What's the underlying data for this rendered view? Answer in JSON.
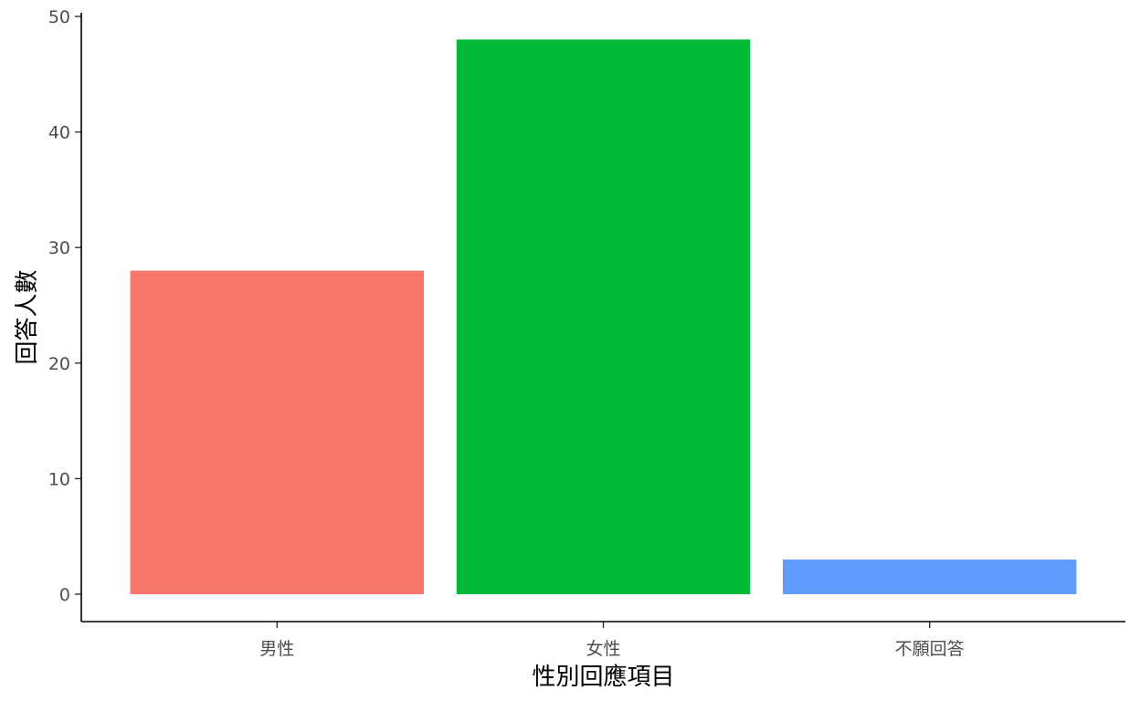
{
  "chart_data": {
    "type": "bar",
    "categories": [
      "男性",
      "女性",
      "不願回答"
    ],
    "values": [
      28,
      48,
      3
    ],
    "colors": [
      "#F8766D",
      "#00BA38",
      "#619CFF"
    ],
    "xlabel": "性別回應項目",
    "ylabel": "回答人數",
    "ylim": [
      0,
      50
    ],
    "yticks": [
      "0",
      "10",
      "20",
      "30",
      "40",
      "50"
    ],
    "grid": false,
    "legend": "none"
  }
}
